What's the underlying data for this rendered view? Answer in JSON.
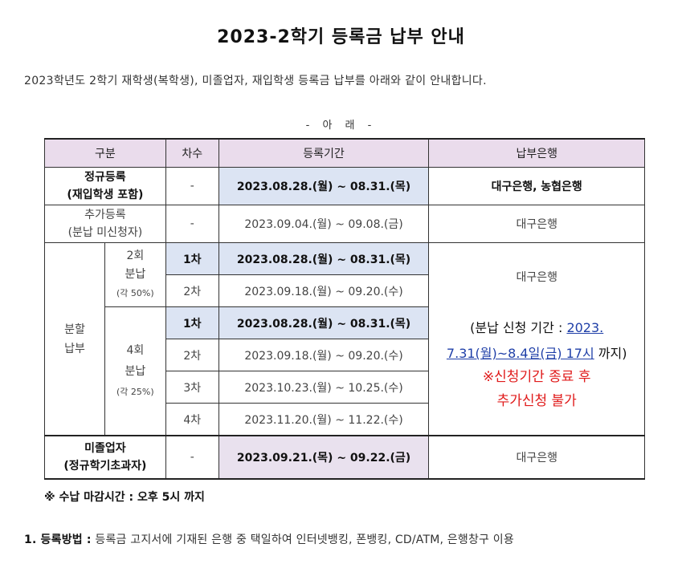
{
  "title": "2023-2학기 등록금 납부 안내",
  "intro": "2023학년도 2학기 재학생(복학생), 미졸업자, 재입학생 등록금 납부를 아래와 같이 안내합니다.",
  "notice_heading": "- 아    래 -",
  "table": {
    "headers": [
      "구분",
      "차수",
      "등록기간",
      "납부은행"
    ],
    "regular": {
      "label_line1": "정규등록",
      "label_line2": "(재입학생 포함)",
      "round": "-",
      "period": "2023.08.28.(월) ~ 08.31.(목)",
      "bank": "대구은행, 농협은행"
    },
    "additional": {
      "label_line1": "추가등록",
      "label_line2": "(분납 미신청자)",
      "round": "-",
      "period": "2023.09.04.(월) ~ 09.08.(금)",
      "bank": "대구은행"
    },
    "installment": {
      "label_line1": "분할",
      "label_line2": "납부",
      "two": {
        "line1": "2회",
        "line2": "분납",
        "line3": "(각 50%)",
        "rows": [
          {
            "round": "1차",
            "period": "2023.08.28.(월) ~ 08.31.(목)"
          },
          {
            "round": "2차",
            "period": "2023.09.18.(월) ~ 09.20.(수)"
          }
        ]
      },
      "four": {
        "line1": "4회",
        "line2": "분납",
        "line3": "(각 25%)",
        "rows": [
          {
            "round": "1차",
            "period": "2023.08.28.(월) ~ 08.31.(목)"
          },
          {
            "round": "2차",
            "period": "2023.09.18.(월) ~ 09.20.(수)"
          },
          {
            "round": "3차",
            "period": "2023.10.23.(월) ~ 10.25.(수)"
          },
          {
            "round": "4차",
            "period": "2023.11.20.(월) ~ 11.22.(수)"
          }
        ]
      },
      "bank": "대구은행",
      "apply_prefix": "(분납 신청 기간 : ",
      "apply_date1": "2023.",
      "apply_date2": "7.31(월)~8.4일(금) 17시",
      "apply_suffix": " 까지)",
      "warn_line1": "※신청기간 종료 후",
      "warn_line2": "추가신청 불가"
    },
    "ungraduated": {
      "label_line1": "미졸업자",
      "label_line2": "(정규학기초과자)",
      "round": "-",
      "period": "2023.09.21.(목) ~ 09.22.(금)",
      "bank": "대구은행"
    }
  },
  "note": "※ 수납 마감시간 : 오후 5시 까지",
  "method": {
    "label": "1. 등록방법 :",
    "text": " 등록금 고지서에 기재된 은행 중 택일하여 인터넷뱅킹, 폰뱅킹, CD/ATM, 은행창구 이용"
  },
  "colors": {
    "header_bg": "#eadcec",
    "highlight_blue": "#dce4f3",
    "highlight_pink": "#e9e1ee",
    "warning_red": "#e01b1b",
    "link_blue": "#1f3fa8"
  }
}
